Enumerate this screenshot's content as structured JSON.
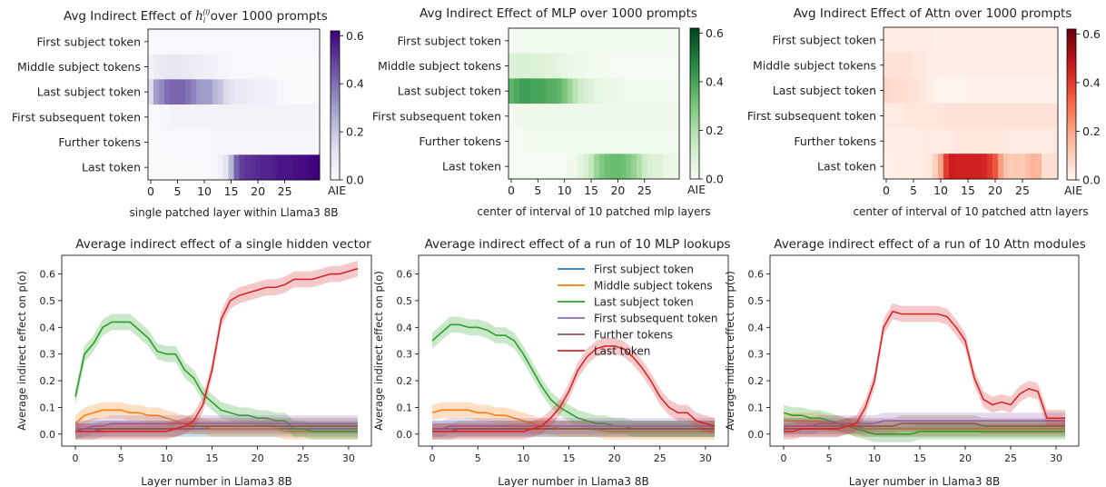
{
  "chart_data": [
    {
      "type": "heatmap",
      "title": "Avg Indirect Effect of h_i^(l) over 1000 prompts",
      "title_parts": {
        "pre": "Avg Indirect Effect of ",
        "math": "h",
        "math_sub": "i",
        "math_sup": "(l)",
        "post": "over 1000 prompts"
      },
      "xlabel": "single patched layer within Llama3 8B",
      "row_labels": [
        "First subject token",
        "Middle subject tokens",
        "Last subject token",
        "First subsequent token",
        "Further tokens",
        "Last token"
      ],
      "x_ticks": [
        0,
        5,
        10,
        15,
        20,
        25
      ],
      "colorbar": {
        "label": "AIE",
        "ticks": [
          "0.0",
          "0.2",
          "0.4",
          "0.6"
        ],
        "range": [
          0,
          0.62
        ]
      },
      "colormap": "Purples",
      "rows": [
        [
          0.01,
          0.02,
          0.02,
          0.02,
          0.02,
          0.02,
          0.02,
          0.02,
          0.02,
          0.02,
          0.02,
          0.02,
          0.02,
          0.02,
          0.02,
          0.02,
          0.02,
          0.02,
          0.02,
          0.02,
          0.02,
          0.02,
          0.02,
          0.02,
          0.02,
          0.02,
          0.02,
          0.02,
          0.02,
          0.02,
          0.02,
          0.02
        ],
        [
          0.04,
          0.07,
          0.08,
          0.09,
          0.09,
          0.09,
          0.08,
          0.08,
          0.07,
          0.07,
          0.06,
          0.05,
          0.04,
          0.03,
          0.03,
          0.02,
          0.02,
          0.02,
          0.02,
          0.02,
          0.02,
          0.02,
          0.02,
          0.01,
          0.01,
          0.01,
          0.01,
          0.01,
          0.01,
          0.01,
          0.01,
          0.01
        ],
        [
          0.14,
          0.3,
          0.34,
          0.4,
          0.42,
          0.42,
          0.42,
          0.39,
          0.36,
          0.31,
          0.3,
          0.3,
          0.24,
          0.21,
          0.15,
          0.12,
          0.09,
          0.08,
          0.07,
          0.07,
          0.06,
          0.06,
          0.05,
          0.05,
          0.02,
          0.02,
          0.01,
          0.01,
          0.01,
          0.01,
          0.01,
          0.01
        ],
        [
          0.02,
          0.02,
          0.03,
          0.03,
          0.04,
          0.04,
          0.04,
          0.04,
          0.04,
          0.04,
          0.04,
          0.04,
          0.04,
          0.04,
          0.04,
          0.04,
          0.04,
          0.04,
          0.04,
          0.04,
          0.04,
          0.04,
          0.04,
          0.04,
          0.04,
          0.04,
          0.04,
          0.04,
          0.04,
          0.04,
          0.04,
          0.04
        ],
        [
          0.01,
          0.01,
          0.01,
          0.02,
          0.02,
          0.02,
          0.02,
          0.02,
          0.02,
          0.02,
          0.02,
          0.02,
          0.03,
          0.03,
          0.03,
          0.03,
          0.03,
          0.03,
          0.03,
          0.03,
          0.03,
          0.03,
          0.03,
          0.03,
          0.03,
          0.03,
          0.03,
          0.03,
          0.03,
          0.03,
          0.03,
          0.03
        ],
        [
          0.01,
          0.01,
          0.01,
          0.01,
          0.01,
          0.01,
          0.01,
          0.01,
          0.01,
          0.01,
          0.01,
          0.02,
          0.03,
          0.05,
          0.11,
          0.24,
          0.43,
          0.5,
          0.52,
          0.53,
          0.54,
          0.55,
          0.55,
          0.56,
          0.58,
          0.58,
          0.58,
          0.59,
          0.6,
          0.6,
          0.61,
          0.62
        ]
      ]
    },
    {
      "type": "heatmap",
      "title": "Avg Indirect Effect of MLP over 1000 prompts",
      "xlabel": "center of interval of 10 patched mlp layers",
      "row_labels": [
        "First subject token",
        "Middle subject tokens",
        "Last subject token",
        "First subsequent token",
        "Further tokens",
        "Last token"
      ],
      "x_ticks": [
        0,
        5,
        10,
        15,
        20,
        25
      ],
      "colorbar": {
        "label": "AIE",
        "ticks": [
          "0.0",
          "0.2",
          "0.4",
          "0.6"
        ],
        "range": [
          0,
          0.62
        ]
      },
      "colormap": "Greens",
      "rows": [
        [
          0.02,
          0.02,
          0.02,
          0.02,
          0.02,
          0.02,
          0.02,
          0.02,
          0.02,
          0.02,
          0.02,
          0.02,
          0.02,
          0.02,
          0.02,
          0.02,
          0.02,
          0.02,
          0.02,
          0.02,
          0.02,
          0.02,
          0.02,
          0.02,
          0.02,
          0.02,
          0.02,
          0.02,
          0.02,
          0.02,
          0.02,
          0.02
        ],
        [
          0.08,
          0.09,
          0.09,
          0.09,
          0.09,
          0.08,
          0.08,
          0.07,
          0.07,
          0.06,
          0.05,
          0.04,
          0.03,
          0.03,
          0.02,
          0.02,
          0.02,
          0.02,
          0.02,
          0.01,
          0.01,
          0.01,
          0.01,
          0.01,
          0.01,
          0.01,
          0.01,
          0.01,
          0.01,
          0.01,
          0.01,
          0.01
        ],
        [
          0.35,
          0.38,
          0.41,
          0.41,
          0.4,
          0.4,
          0.39,
          0.37,
          0.37,
          0.35,
          0.3,
          0.24,
          0.18,
          0.13,
          0.1,
          0.08,
          0.06,
          0.05,
          0.04,
          0.04,
          0.03,
          0.03,
          0.02,
          0.02,
          0.02,
          0.02,
          0.02,
          0.02,
          0.02,
          0.02,
          0.02,
          0.02
        ],
        [
          0.02,
          0.02,
          0.03,
          0.03,
          0.03,
          0.03,
          0.03,
          0.03,
          0.03,
          0.03,
          0.03,
          0.03,
          0.03,
          0.03,
          0.03,
          0.03,
          0.03,
          0.03,
          0.03,
          0.03,
          0.03,
          0.03,
          0.03,
          0.03,
          0.03,
          0.03,
          0.03,
          0.03,
          0.03,
          0.03,
          0.03,
          0.03
        ],
        [
          0.01,
          0.01,
          0.01,
          0.02,
          0.02,
          0.02,
          0.02,
          0.02,
          0.02,
          0.02,
          0.02,
          0.02,
          0.02,
          0.02,
          0.02,
          0.02,
          0.02,
          0.02,
          0.02,
          0.02,
          0.02,
          0.02,
          0.02,
          0.02,
          0.02,
          0.02,
          0.02,
          0.02,
          0.02,
          0.02,
          0.02,
          0.02
        ],
        [
          0.01,
          0.01,
          0.01,
          0.01,
          0.01,
          0.01,
          0.01,
          0.01,
          0.01,
          0.01,
          0.01,
          0.02,
          0.03,
          0.06,
          0.1,
          0.16,
          0.24,
          0.29,
          0.32,
          0.33,
          0.33,
          0.32,
          0.29,
          0.25,
          0.2,
          0.14,
          0.1,
          0.08,
          0.08,
          0.05,
          0.04,
          0.03
        ]
      ]
    },
    {
      "type": "heatmap",
      "title": "Avg Indirect Effect of Attn over 1000 prompts",
      "xlabel": "center of interval of 10 patched attn layers",
      "row_labels": [
        "First subject token",
        "Middle subject tokens",
        "Last subject token",
        "First subsequent token",
        "Further tokens",
        "Last token"
      ],
      "x_ticks": [
        0,
        5,
        10,
        15,
        20,
        25
      ],
      "colorbar": {
        "label": "AIE",
        "ticks": [
          "0.0",
          "0.2",
          "0.4",
          "0.6"
        ],
        "range": [
          0,
          0.62
        ]
      },
      "colormap": "Reds",
      "rows": [
        [
          0.03,
          0.03,
          0.03,
          0.03,
          0.03,
          0.03,
          0.03,
          0.03,
          0.03,
          0.02,
          0.02,
          0.02,
          0.02,
          0.02,
          0.02,
          0.02,
          0.02,
          0.02,
          0.02,
          0.02,
          0.02,
          0.02,
          0.02,
          0.02,
          0.02,
          0.02,
          0.02,
          0.02,
          0.02,
          0.02,
          0.02,
          0.02
        ],
        [
          0.05,
          0.05,
          0.05,
          0.05,
          0.05,
          0.04,
          0.04,
          0.03,
          0.02,
          0.02,
          0.02,
          0.02,
          0.02,
          0.02,
          0.02,
          0.02,
          0.02,
          0.02,
          0.02,
          0.02,
          0.02,
          0.02,
          0.02,
          0.02,
          0.02,
          0.02,
          0.02,
          0.02,
          0.02,
          0.02,
          0.02,
          0.02
        ],
        [
          0.08,
          0.07,
          0.07,
          0.06,
          0.06,
          0.05,
          0.04,
          0.03,
          0.02,
          0.01,
          0.0,
          0.0,
          0.0,
          0.0,
          0.0,
          0.01,
          0.01,
          0.01,
          0.01,
          0.01,
          0.01,
          0.01,
          0.01,
          0.01,
          0.01,
          0.01,
          0.01,
          0.01,
          0.01,
          0.01,
          0.01,
          0.01
        ],
        [
          0.03,
          0.03,
          0.03,
          0.03,
          0.04,
          0.04,
          0.04,
          0.04,
          0.04,
          0.04,
          0.04,
          0.05,
          0.05,
          0.05,
          0.05,
          0.05,
          0.05,
          0.05,
          0.05,
          0.05,
          0.05,
          0.05,
          0.05,
          0.05,
          0.05,
          0.05,
          0.05,
          0.05,
          0.05,
          0.05,
          0.05,
          0.05
        ],
        [
          0.02,
          0.02,
          0.02,
          0.02,
          0.02,
          0.02,
          0.02,
          0.03,
          0.03,
          0.03,
          0.03,
          0.03,
          0.03,
          0.04,
          0.04,
          0.04,
          0.04,
          0.04,
          0.04,
          0.04,
          0.04,
          0.04,
          0.03,
          0.03,
          0.03,
          0.03,
          0.03,
          0.03,
          0.03,
          0.03,
          0.03,
          0.03
        ],
        [
          0.01,
          0.01,
          0.02,
          0.02,
          0.02,
          0.02,
          0.02,
          0.03,
          0.04,
          0.1,
          0.2,
          0.4,
          0.46,
          0.45,
          0.45,
          0.45,
          0.45,
          0.45,
          0.44,
          0.4,
          0.35,
          0.21,
          0.13,
          0.11,
          0.12,
          0.11,
          0.15,
          0.17,
          0.16,
          0.06,
          0.06,
          0.06
        ]
      ]
    },
    {
      "type": "line",
      "title": "Average indirect effect of a single hidden vector",
      "xlabel": "Layer number in Llama3 8B",
      "ylabel": "Average indirect effect on p(o)",
      "xlim": [
        -1.5,
        32.5
      ],
      "ylim": [
        -0.045,
        0.67
      ],
      "x_ticks": [
        0,
        5,
        10,
        15,
        20,
        25,
        30
      ],
      "y_ticks": [
        0.0,
        0.1,
        0.2,
        0.3,
        0.4,
        0.5,
        0.6
      ],
      "band": 0.03,
      "series_ref": 0
    },
    {
      "type": "line",
      "title": "Average indirect effect of a run of 10 MLP lookups",
      "xlabel": "Layer number in Llama3 8B",
      "ylabel": "Average indirect effect on p(o)",
      "xlim": [
        -1.5,
        32.5
      ],
      "ylim": [
        -0.045,
        0.67
      ],
      "x_ticks": [
        0,
        5,
        10,
        15,
        20,
        25,
        30
      ],
      "y_ticks": [
        0.0,
        0.1,
        0.2,
        0.3,
        0.4,
        0.5,
        0.6
      ],
      "band": 0.03,
      "series_ref": 1,
      "legend": {
        "placement": "top-right",
        "entries": [
          "First subject token",
          "Middle subject tokens",
          "Last subject token",
          "First subsequent token",
          "Further tokens",
          "Last token"
        ]
      }
    },
    {
      "type": "line",
      "title": "Average indirect effect of a run of 10 Attn modules",
      "xlabel": "Layer number in Llama3 8B",
      "ylabel": "Average indirect effect on p(o)",
      "xlim": [
        -1.5,
        32.5
      ],
      "ylim": [
        -0.045,
        0.67
      ],
      "x_ticks": [
        0,
        5,
        10,
        15,
        20,
        25,
        30
      ],
      "y_ticks": [
        0.0,
        0.1,
        0.2,
        0.3,
        0.4,
        0.5,
        0.6
      ],
      "band": 0.03,
      "series_ref": 2
    }
  ],
  "series_colors": [
    "#1f77b4",
    "#ff7f0e",
    "#2ca02c",
    "#9467bd",
    "#8c564b",
    "#d62728"
  ]
}
